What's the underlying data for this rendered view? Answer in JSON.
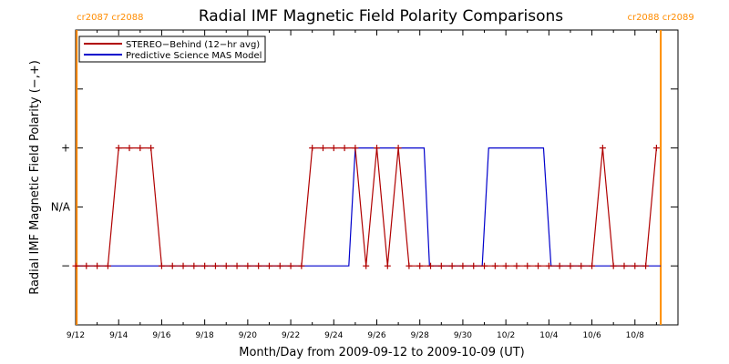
{
  "chart_data": {
    "type": "line",
    "title": "Radial IMF Magnetic Field Polarity Comparisons",
    "xlabel": "Month/Day from 2009-09-12 to 2009-10-09 (UT)",
    "ylabel": "Radial IMF Magnetic Field Polarity (−,+)",
    "x_tick_labels": [
      "9/12",
      "9/14",
      "9/16",
      "9/18",
      "9/20",
      "9/22",
      "9/24",
      "9/26",
      "9/28",
      "9/30",
      "10/2",
      "10/4",
      "10/6",
      "10/8"
    ],
    "x_tick_days": [
      0,
      2,
      4,
      6,
      8,
      10,
      12,
      14,
      16,
      18,
      20,
      22,
      24,
      26
    ],
    "xlim": [
      0,
      28
    ],
    "y_tick_labels": [
      "+",
      "N/A",
      "−"
    ],
    "y_tick_values": [
      1,
      0,
      -1
    ],
    "ylim": [
      -2,
      3
    ],
    "grid": false,
    "legend_position": "top-left",
    "carrington_markers": [
      {
        "label": "cr2087  cr2088",
        "day": 0.05,
        "color": "#ff8c00"
      },
      {
        "label": "cr2088  cr2089",
        "day": 27.2,
        "color": "#ff8c00"
      }
    ],
    "series": [
      {
        "name": "STEREO−Behind (12−hr avg)",
        "color": "#b00000",
        "markers": true,
        "x": [
          0,
          0.5,
          1,
          1.5,
          2,
          2.5,
          3,
          3.5,
          4,
          4.5,
          5,
          5.5,
          6,
          6.5,
          7,
          7.5,
          8,
          8.5,
          9,
          9.5,
          10,
          10.5,
          11,
          11.5,
          12,
          12.5,
          13,
          13.5,
          14,
          14.5,
          15,
          15.5,
          16,
          16.5,
          17,
          17.5,
          18,
          18.5,
          19,
          19.5,
          20,
          20.5,
          21,
          21.5,
          22,
          22.5,
          23,
          23.5,
          24,
          24.5,
          25,
          25.5,
          26,
          26.5,
          27
        ],
        "y": [
          -1,
          -1,
          -1,
          -1,
          1,
          1,
          1,
          1,
          -1,
          -1,
          -1,
          -1,
          -1,
          -1,
          -1,
          -1,
          -1,
          -1,
          -1,
          -1,
          -1,
          -1,
          1,
          1,
          1,
          1,
          1,
          -1,
          1,
          -1,
          1,
          -1,
          -1,
          -1,
          -1,
          -1,
          -1,
          -1,
          -1,
          -1,
          -1,
          -1,
          -1,
          -1,
          -1,
          -1,
          -1,
          -1,
          -1,
          1,
          -1,
          -1,
          -1,
          -1,
          1
        ]
      },
      {
        "name": "Predictive Science MAS Model",
        "color": "#0000cc",
        "markers": false,
        "x": [
          0,
          12.7,
          13.0,
          16.2,
          16.45,
          18.9,
          19.2,
          21.75,
          22.1,
          27.2
        ],
        "y": [
          -1,
          -1,
          1,
          1,
          -1,
          -1,
          1,
          1,
          -1,
          -1
        ]
      }
    ]
  }
}
